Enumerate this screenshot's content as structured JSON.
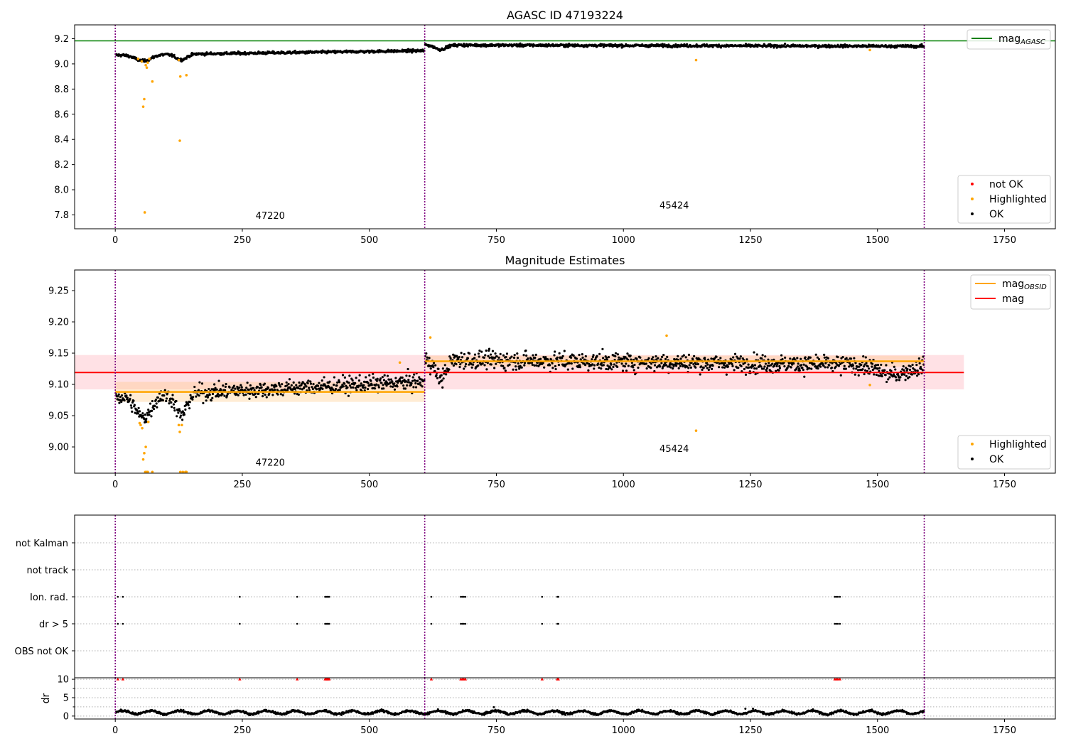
{
  "chart_data": [
    {
      "type": "scatter",
      "title": "AGASC ID 47193224",
      "xlim": [
        -80,
        1850
      ],
      "ylim": [
        7.69,
        9.31
      ],
      "xticks": [
        0,
        250,
        500,
        750,
        1000,
        1250,
        1500,
        1750
      ],
      "yticks": [
        7.8,
        8.0,
        8.2,
        8.4,
        8.6,
        8.8,
        9.0,
        9.2
      ],
      "ytick_labels": [
        "7.8",
        "8.0",
        "8.2",
        "8.4",
        "8.6",
        "8.8",
        "9.0",
        "9.2"
      ],
      "vlines": [
        0,
        609,
        1592
      ],
      "hline": {
        "y": 9.183,
        "color": "#008000"
      },
      "obsid_labels": [
        {
          "text": "47220",
          "x": 305,
          "y": 7.77
        },
        {
          "text": "45424",
          "x": 1100,
          "y": 7.85
        }
      ],
      "ok_segments": [
        {
          "x0": 0,
          "x1": 609,
          "y0": 9.07,
          "y1": 9.105,
          "noise": 0.009,
          "dips": [
            {
              "c": 55,
              "w": 22,
              "d": 0.05
            },
            {
              "c": 130,
              "w": 15,
              "d": 0.045
            }
          ]
        },
        {
          "x0": 609,
          "x1": 1592,
          "y0": 9.15,
          "y1": 9.14,
          "noise": 0.009,
          "dips": [
            {
              "c": 640,
              "w": 15,
              "d": 0.035
            }
          ]
        }
      ],
      "highlighted": {
        "x": [
          45,
          52,
          55,
          57,
          58,
          60,
          62,
          64,
          67,
          73,
          125,
          127,
          128,
          140,
          1143,
          1485
        ],
        "y": [
          9.04,
          9.02,
          8.66,
          8.72,
          7.82,
          8.99,
          8.97,
          9.01,
          9.04,
          8.86,
          9.03,
          8.39,
          8.9,
          8.91,
          9.03,
          9.11
        ]
      },
      "legends": [
        {
          "position": "top-right",
          "entries": [
            {
              "label": "mag",
              "sub": "AGASC",
              "kind": "line",
              "color": "#008000"
            }
          ]
        },
        {
          "position": "lower-right",
          "entries": [
            {
              "label": "not OK",
              "kind": "dot",
              "color": "#ff0000"
            },
            {
              "label": "Highlighted",
              "kind": "dot",
              "color": "#ffa500"
            },
            {
              "label": "OK",
              "kind": "dot",
              "color": "#000000"
            }
          ]
        }
      ]
    },
    {
      "type": "scatter",
      "title": "Magnitude Estimates",
      "xlim": [
        -80,
        1850
      ],
      "ylim": [
        8.958,
        9.283
      ],
      "xticks": [
        0,
        250,
        500,
        750,
        1000,
        1250,
        1500,
        1750
      ],
      "yticks": [
        9.0,
        9.05,
        9.1,
        9.15,
        9.2,
        9.25
      ],
      "ytick_labels": [
        "9.00",
        "9.05",
        "9.10",
        "9.15",
        "9.20",
        "9.25"
      ],
      "vlines": [
        0,
        609,
        1592
      ],
      "mag": {
        "value": 9.119,
        "band": [
          9.092,
          9.147
        ],
        "x": [
          -80,
          1670
        ],
        "color": "#ff0000"
      },
      "mag_obsid": [
        {
          "x": [
            0,
            609
          ],
          "value": 9.088,
          "band": [
            9.072,
            9.104
          ]
        },
        {
          "x": [
            609,
            1592
          ],
          "value": 9.137,
          "band": [
            9.128,
            9.146
          ]
        }
      ],
      "obsid_labels": [
        {
          "text": "47220",
          "x": 305,
          "y": 8.97
        },
        {
          "text": "45424",
          "x": 1100,
          "y": 8.992
        }
      ],
      "ok_segments": [
        {
          "x0": 0,
          "x1": 609,
          "y0": 9.08,
          "y1": 9.105,
          "noise": 0.011,
          "dips": [
            {
              "c": 55,
              "w": 22,
              "d": 0.035
            },
            {
              "c": 130,
              "w": 15,
              "d": 0.035
            }
          ]
        },
        {
          "x0": 609,
          "x1": 1592,
          "y0": 9.14,
          "y1": 9.13,
          "noise": 0.012,
          "dips": [
            {
              "c": 640,
              "w": 15,
              "d": 0.03
            },
            {
              "c": 1530,
              "w": 40,
              "d": 0.015
            }
          ]
        }
      ],
      "highlighted": {
        "x": [
          48,
          50,
          53,
          55,
          57,
          59,
          60,
          62,
          64,
          65,
          73,
          125,
          127,
          128,
          131,
          133,
          138,
          140,
          560,
          620,
          1085,
          1143,
          1485
        ],
        "y": [
          9.038,
          9.035,
          9.03,
          8.98,
          8.99,
          8.96,
          9.0,
          8.96,
          8.96,
          9.04,
          8.96,
          9.035,
          9.024,
          8.96,
          9.035,
          8.96,
          8.96,
          8.96,
          9.135,
          9.175,
          9.178,
          9.026,
          9.099
        ]
      },
      "legends": [
        {
          "position": "top-right",
          "entries": [
            {
              "label": "mag",
              "sub": "OBSID",
              "kind": "line",
              "color": "#ffa500"
            },
            {
              "label": "mag",
              "kind": "line",
              "color": "#ff0000"
            }
          ]
        },
        {
          "position": "lower-right",
          "entries": [
            {
              "label": "Highlighted",
              "kind": "dot",
              "color": "#ffa500"
            },
            {
              "label": "OK",
              "kind": "dot",
              "color": "#000000"
            }
          ]
        }
      ]
    },
    {
      "type": "scatter",
      "xlim": [
        -80,
        1850
      ],
      "categories": [
        "OBS not OK",
        "dr > 5",
        "Ion. rad.",
        "not track",
        "not Kalman"
      ],
      "vlines": [
        0,
        609,
        1592
      ],
      "flags": {
        "dr > 5": [
          5,
          15,
          245,
          358,
          413,
          415,
          417,
          419,
          421,
          622,
          680,
          683,
          686,
          689,
          840,
          870,
          872,
          1416,
          1419,
          1422,
          1426
        ],
        "Ion. rad.": [
          5,
          15,
          245,
          358,
          413,
          415,
          417,
          419,
          421,
          622,
          680,
          683,
          686,
          689,
          840,
          870,
          872,
          1416,
          1419,
          1422,
          1426
        ]
      }
    },
    {
      "type": "scatter",
      "xlim": [
        -80,
        1850
      ],
      "ylim": [
        -0.8,
        10.4
      ],
      "ylabel": "dr",
      "xticks": [
        0,
        250,
        500,
        750,
        1000,
        1250,
        1500,
        1750
      ],
      "yticks": [
        0,
        5,
        10
      ],
      "ytick_labels": [
        "0",
        "5",
        "10"
      ],
      "vlines": [
        0,
        609,
        1592
      ],
      "dr_level": 1.0,
      "outliers": {
        "x": [
          745,
          1240,
          1255
        ],
        "y": [
          2.4,
          2.0,
          2.0
        ]
      },
      "capped_points": {
        "x": [
          5,
          15,
          245,
          358,
          413,
          415,
          417,
          419,
          421,
          622,
          680,
          683,
          686,
          689,
          840,
          870,
          872,
          1416,
          1419,
          1422,
          1426
        ],
        "y": 10,
        "color": "#ff0000"
      }
    }
  ]
}
